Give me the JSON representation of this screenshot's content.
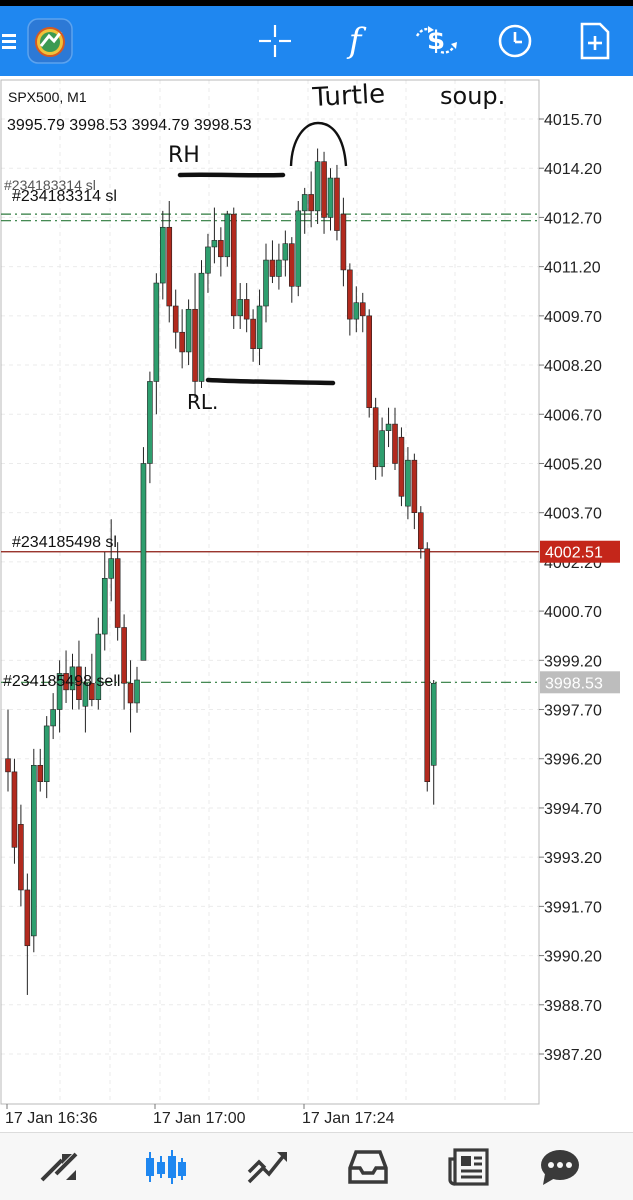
{
  "toolbar": {
    "bg_color": "#1f87f0",
    "icons": [
      "menu-icon",
      "app-logo-icon",
      "crosshair-icon",
      "indicators-icon",
      "trade-icon",
      "timeframe-icon",
      "add-object-icon"
    ],
    "indicators_glyph": "f"
  },
  "chart": {
    "symbol": "SPX500, M1",
    "ohlc": "3995.79 3998.53 3994.79 3998.53",
    "price_labels": [
      "4015.70",
      "4014.20",
      "4012.70",
      "4011.20",
      "4009.70",
      "4008.20",
      "4006.70",
      "4005.20",
      "4003.70",
      "4002.20",
      "4000.70",
      "3999.20",
      "3997.70",
      "3996.20",
      "3994.70",
      "3993.20",
      "3991.70",
      "3990.20",
      "3988.70",
      "3987.20"
    ],
    "time_labels": [
      "17 Jan 16:36",
      "17 Jan 17:00",
      "17 Jan 17:24"
    ],
    "current_price": "4002.51",
    "last_price": "3998.53",
    "orders": {
      "sl1": "#234183314 sl",
      "sl1_overlap": "#234183314 sl",
      "sl2": "#234185498 sl",
      "sell": "#234185498 sell"
    },
    "annotations": {
      "turtle": "Turtle",
      "soup": "soup.",
      "rh": "RH",
      "rl": "RL."
    },
    "colors": {
      "bull": "#2e9e6e",
      "bear": "#b22a1e",
      "grid": "#ebebeb",
      "order_line": "#2d7a3d",
      "price_line": "#8b1a10",
      "price_tag": "#c4261a",
      "last_tag": "#bdbdbd"
    }
  },
  "chart_data": {
    "type": "candlestick",
    "title": "SPX500, M1",
    "ylim": [
      3985.7,
      4017.0
    ],
    "x_ticks": [
      "17 Jan 16:36",
      "17 Jan 17:00",
      "17 Jan 17:24"
    ],
    "candles": [
      {
        "o": 3996.2,
        "h": 3997.7,
        "l": 3995.2,
        "c": 3995.8
      },
      {
        "o": 3995.8,
        "h": 3996.2,
        "l": 3993.0,
        "c": 3993.5
      },
      {
        "o": 3994.2,
        "h": 3994.8,
        "l": 3991.7,
        "c": 3992.2
      },
      {
        "o": 3992.2,
        "h": 3992.7,
        "l": 3989.0,
        "c": 3990.5
      },
      {
        "o": 3990.8,
        "h": 3996.5,
        "l": 3990.3,
        "c": 3996.0
      },
      {
        "o": 3996.0,
        "h": 3996.5,
        "l": 3995.2,
        "c": 3995.5
      },
      {
        "o": 3995.5,
        "h": 3997.5,
        "l": 3995.0,
        "c": 3997.2
      },
      {
        "o": 3997.2,
        "h": 3998.2,
        "l": 3996.8,
        "c": 3997.7
      },
      {
        "o": 3997.7,
        "h": 3999.2,
        "l": 3997.0,
        "c": 3998.8
      },
      {
        "o": 3998.8,
        "h": 3999.5,
        "l": 3997.9,
        "c": 3998.3
      },
      {
        "o": 3998.3,
        "h": 3999.4,
        "l": 3997.7,
        "c": 3999.0
      },
      {
        "o": 3999.0,
        "h": 3999.8,
        "l": 3997.7,
        "c": 3998.0
      },
      {
        "o": 3997.8,
        "h": 3999.0,
        "l": 3997.0,
        "c": 3998.5
      },
      {
        "o": 3998.5,
        "h": 3999.4,
        "l": 3997.8,
        "c": 3998.0
      },
      {
        "o": 3998.0,
        "h": 4000.5,
        "l": 3997.7,
        "c": 4000.0
      },
      {
        "o": 4000.0,
        "h": 4002.5,
        "l": 3999.5,
        "c": 4001.7
      },
      {
        "o": 4001.7,
        "h": 4003.5,
        "l": 4001.0,
        "c": 4002.3
      },
      {
        "o": 4002.3,
        "h": 4002.8,
        "l": 3999.8,
        "c": 4000.2
      },
      {
        "o": 4000.2,
        "h": 4000.6,
        "l": 3997.7,
        "c": 3998.5
      },
      {
        "o": 3998.5,
        "h": 3999.2,
        "l": 3997.0,
        "c": 3997.9
      },
      {
        "o": 3997.9,
        "h": 3999.0,
        "l": 3997.6,
        "c": 3998.6
      },
      {
        "o": 3999.2,
        "h": 4005.7,
        "l": 3999.2,
        "c": 4005.2
      },
      {
        "o": 4005.2,
        "h": 4008.0,
        "l": 4004.6,
        "c": 4007.7
      },
      {
        "o": 4007.7,
        "h": 4011.0,
        "l": 4006.7,
        "c": 4010.7
      },
      {
        "o": 4010.7,
        "h": 4012.9,
        "l": 4010.2,
        "c": 4012.4
      },
      {
        "o": 4012.4,
        "h": 4013.2,
        "l": 4009.5,
        "c": 4010.0
      },
      {
        "o": 4010.0,
        "h": 4010.5,
        "l": 4008.7,
        "c": 4009.2
      },
      {
        "o": 4009.2,
        "h": 4009.9,
        "l": 4008.1,
        "c": 4008.6
      },
      {
        "o": 4008.6,
        "h": 4010.2,
        "l": 4008.2,
        "c": 4009.9
      },
      {
        "o": 4009.9,
        "h": 4011.0,
        "l": 4007.2,
        "c": 4007.7
      },
      {
        "o": 4007.7,
        "h": 4011.4,
        "l": 4007.5,
        "c": 4011.0
      },
      {
        "o": 4011.0,
        "h": 4012.2,
        "l": 4010.4,
        "c": 4011.8
      },
      {
        "o": 4011.8,
        "h": 4013.0,
        "l": 4011.3,
        "c": 4012.0
      },
      {
        "o": 4012.0,
        "h": 4012.4,
        "l": 4010.9,
        "c": 4011.5
      },
      {
        "o": 4011.5,
        "h": 4012.9,
        "l": 4011.2,
        "c": 4012.8
      },
      {
        "o": 4012.8,
        "h": 4013.0,
        "l": 4009.3,
        "c": 4009.7
      },
      {
        "o": 4009.7,
        "h": 4010.7,
        "l": 4009.3,
        "c": 4010.2
      },
      {
        "o": 4010.2,
        "h": 4010.7,
        "l": 4009.2,
        "c": 4009.6
      },
      {
        "o": 4009.6,
        "h": 4009.9,
        "l": 4008.3,
        "c": 4008.7
      },
      {
        "o": 4008.7,
        "h": 4010.5,
        "l": 4008.2,
        "c": 4010.0
      },
      {
        "o": 4010.0,
        "h": 4011.9,
        "l": 4009.5,
        "c": 4011.4
      },
      {
        "o": 4011.4,
        "h": 4012.0,
        "l": 4010.7,
        "c": 4010.9
      },
      {
        "o": 4010.9,
        "h": 4011.9,
        "l": 4010.5,
        "c": 4011.4
      },
      {
        "o": 4011.4,
        "h": 4012.3,
        "l": 4010.9,
        "c": 4011.9
      },
      {
        "o": 4011.9,
        "h": 4012.1,
        "l": 4010.1,
        "c": 4010.6
      },
      {
        "o": 4010.6,
        "h": 4013.2,
        "l": 4010.3,
        "c": 4012.9
      },
      {
        "o": 4012.9,
        "h": 4013.6,
        "l": 4012.2,
        "c": 4013.4
      },
      {
        "o": 4013.4,
        "h": 4014.1,
        "l": 4012.4,
        "c": 4012.9
      },
      {
        "o": 4012.9,
        "h": 4014.8,
        "l": 4012.5,
        "c": 4014.4
      },
      {
        "o": 4014.4,
        "h": 4014.7,
        "l": 4012.2,
        "c": 4012.7
      },
      {
        "o": 4012.7,
        "h": 4014.2,
        "l": 4012.3,
        "c": 4013.9
      },
      {
        "o": 4013.9,
        "h": 4014.3,
        "l": 4012.0,
        "c": 4012.3
      },
      {
        "o": 4012.8,
        "h": 4013.3,
        "l": 4010.6,
        "c": 4011.1
      },
      {
        "o": 4011.1,
        "h": 4011.3,
        "l": 4009.1,
        "c": 4009.6
      },
      {
        "o": 4009.6,
        "h": 4010.6,
        "l": 4009.2,
        "c": 4010.1
      },
      {
        "o": 4010.1,
        "h": 4010.4,
        "l": 4009.2,
        "c": 4009.7
      },
      {
        "o": 4009.7,
        "h": 4009.9,
        "l": 4006.6,
        "c": 4006.9
      },
      {
        "o": 4006.9,
        "h": 4007.2,
        "l": 4004.7,
        "c": 4005.1
      },
      {
        "o": 4005.1,
        "h": 4006.6,
        "l": 4004.8,
        "c": 4006.2
      },
      {
        "o": 4006.2,
        "h": 4006.9,
        "l": 4005.7,
        "c": 4006.4
      },
      {
        "o": 4006.4,
        "h": 4006.9,
        "l": 4005.0,
        "c": 4005.2
      },
      {
        "o": 4006.0,
        "h": 4006.3,
        "l": 4003.9,
        "c": 4004.2
      },
      {
        "o": 4003.9,
        "h": 4005.7,
        "l": 4003.5,
        "c": 4005.3
      },
      {
        "o": 4005.3,
        "h": 4005.5,
        "l": 4003.2,
        "c": 4003.7
      },
      {
        "o": 4003.7,
        "h": 4003.9,
        "l": 4002.3,
        "c": 4002.6
      },
      {
        "o": 4002.6,
        "h": 4002.8,
        "l": 3995.2,
        "c": 3995.5
      },
      {
        "o": 3996.0,
        "h": 3998.6,
        "l": 3994.8,
        "c": 3998.5
      }
    ],
    "price_line": 4002.51,
    "order_levels": [
      {
        "name": "#234183314 sl",
        "y": 4012.8
      },
      {
        "name": "#234183314 sl",
        "y": 4012.6
      },
      {
        "name": "#234185498 sl",
        "y": 4002.51
      },
      {
        "name": "#234185498 sell",
        "y": 3998.53
      }
    ]
  },
  "bottom_nav": {
    "items": [
      "quotes-icon",
      "chart-icon",
      "trade-icon",
      "history-icon",
      "news-icon",
      "messages-icon"
    ],
    "active_color": "#1f87f0",
    "inactive_color": "#3a3a3a"
  }
}
